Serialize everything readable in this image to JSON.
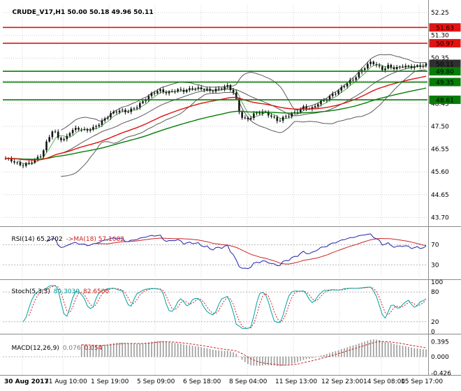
{
  "window": {
    "title": "CRUDE_V17,H1 50.00 50.18 49.96 50.11"
  },
  "panels": {
    "rsi": {
      "label": "RSI(14) 65.2702",
      "ma_label": "->MA(18) 57.1082"
    },
    "stoch": {
      "label": "Stoch(5,3,3)",
      "k_value": "80.3030",
      "d_value": "82.6500"
    },
    "macd": {
      "label": "MACD(12,26,9)",
      "main_value": "0.076",
      "signal_value": "0.054"
    }
  },
  "axes": {
    "price_ticks": [
      "52.25",
      "51.30",
      "50.35",
      "49.40",
      "48.45",
      "47.50",
      "46.55",
      "45.60",
      "44.65",
      "43.70"
    ],
    "rsi_ticks": [
      "70",
      "30"
    ],
    "stoch_ticks": [
      "100",
      "80",
      "20",
      "0"
    ],
    "macd_ticks": [
      "0.395",
      "0.000",
      "-0.426"
    ],
    "time_ticks": [
      "30 Aug 2017",
      "31 Aug 10:00",
      "1 Sep 19:00",
      "5 Sep 09:00",
      "6 Sep 18:00",
      "8 Sep 04:00",
      "11 Sep 13:00",
      "12 Sep 23:00",
      "14 Sep 08:00",
      "15 Sep 17:00"
    ]
  },
  "levels": [
    {
      "value": "51.63",
      "price": 51.63,
      "role": "resistance"
    },
    {
      "value": "50.97",
      "price": 50.97,
      "role": "resistance"
    },
    {
      "value": "50.11",
      "price": 50.11,
      "role": "current"
    },
    {
      "value": "49.80",
      "price": 49.8,
      "role": "support"
    },
    {
      "value": "49.35",
      "price": 49.35,
      "role": "support"
    },
    {
      "value": "48.61",
      "price": 48.61,
      "role": "support"
    }
  ],
  "colors": {
    "background": "#ffffff",
    "grid": "#cfcfcf",
    "separator": "#8a8a8a",
    "candle": "#151515",
    "bollinger": "#5a5a5a",
    "ma_fast_green": "#58b058",
    "ma_red": "#dd1111",
    "ma_slow_green": "#067d06",
    "resistance": "#e21212",
    "support": "#067d06",
    "current_price": "#2f2f2f",
    "rsi_line": "#2222a8",
    "rsi_ma": "#cc2222",
    "stoch_line": "#00a0a0",
    "stoch_signal": "#cc2222",
    "macd_hist": "#9a9a9a",
    "macd_signal": "#cc2222",
    "level_dotted": "#b5b5b5"
  },
  "chart_data": {
    "type": "candlestick",
    "symbol": "CRUDE_V17",
    "timeframe": "H1",
    "title": "CRUDE_V17,H1",
    "quote": {
      "open": "50.00",
      "high": "50.18",
      "low": "49.96",
      "close": "50.11"
    },
    "ylim": [
      43.46,
      52.5
    ],
    "price_axis_ticks": [
      52.25,
      51.3,
      50.35,
      49.4,
      48.45,
      47.5,
      46.55,
      45.6,
      44.65,
      43.7
    ],
    "time_ticks": [
      "30 Aug 2017",
      "31 Aug 10:00",
      "1 Sep 19:00",
      "5 Sep 09:00",
      "6 Sep 18:00",
      "8 Sep 04:00",
      "11 Sep 13:00",
      "12 Sep 23:00",
      "14 Sep 08:00",
      "15 Sep 17:00"
    ],
    "levels": {
      "resistance": [
        51.63,
        50.97
      ],
      "support": [
        49.8,
        49.35,
        48.61
      ],
      "current": 50.11
    },
    "overlays": [
      "Bollinger Bands",
      "fast green MA",
      "red MA",
      "slow green MA"
    ],
    "price_path_anchors": [
      [
        6,
        46.15
      ],
      [
        18,
        46.05
      ],
      [
        30,
        45.9
      ],
      [
        42,
        46.0
      ],
      [
        52,
        46.15
      ],
      [
        60,
        46.3
      ],
      [
        68,
        46.9
      ],
      [
        76,
        47.35
      ],
      [
        84,
        47.0
      ],
      [
        92,
        46.95
      ],
      [
        100,
        47.3
      ],
      [
        110,
        47.45
      ],
      [
        122,
        47.3
      ],
      [
        134,
        47.4
      ],
      [
        146,
        47.7
      ],
      [
        158,
        48.05
      ],
      [
        170,
        48.2
      ],
      [
        182,
        48.1
      ],
      [
        194,
        48.25
      ],
      [
        206,
        48.55
      ],
      [
        218,
        48.9
      ],
      [
        228,
        49.05
      ],
      [
        240,
        48.9
      ],
      [
        252,
        49.0
      ],
      [
        264,
        48.95
      ],
      [
        276,
        49.1
      ],
      [
        290,
        49.1
      ],
      [
        302,
        49.0
      ],
      [
        314,
        49.05
      ],
      [
        326,
        49.15
      ],
      [
        336,
        48.85
      ],
      [
        344,
        47.95
      ],
      [
        354,
        47.8
      ],
      [
        364,
        48.05
      ],
      [
        376,
        48.1
      ],
      [
        388,
        47.9
      ],
      [
        398,
        47.7
      ],
      [
        410,
        47.95
      ],
      [
        422,
        48.1
      ],
      [
        434,
        48.3
      ],
      [
        446,
        48.2
      ],
      [
        456,
        48.45
      ],
      [
        466,
        48.6
      ],
      [
        476,
        48.85
      ],
      [
        486,
        49.05
      ],
      [
        496,
        49.3
      ],
      [
        506,
        49.45
      ],
      [
        516,
        49.75
      ],
      [
        524,
        50.0
      ],
      [
        532,
        50.2
      ],
      [
        540,
        50.05
      ],
      [
        548,
        49.9
      ],
      [
        556,
        50.05
      ],
      [
        566,
        49.9
      ],
      [
        576,
        50.0
      ],
      [
        586,
        49.95
      ],
      [
        596,
        50.0
      ],
      [
        610,
        50.11
      ]
    ],
    "indicators": [
      {
        "type": "RSI",
        "period": 14,
        "value": 65.2702,
        "ma_period": 18,
        "ma_value": 57.1082,
        "levels": [
          70,
          30
        ],
        "range": [
          0,
          100
        ]
      },
      {
        "type": "Stochastic",
        "params": [
          5,
          3,
          3
        ],
        "k": 80.303,
        "d": 82.65,
        "levels": [
          80,
          20
        ],
        "range": [
          0,
          100
        ]
      },
      {
        "type": "MACD",
        "params": [
          12,
          26,
          9
        ],
        "macd": 0.076,
        "signal": 0.054,
        "axis_ticks": [
          0.395,
          0.0,
          -0.426
        ]
      }
    ]
  }
}
